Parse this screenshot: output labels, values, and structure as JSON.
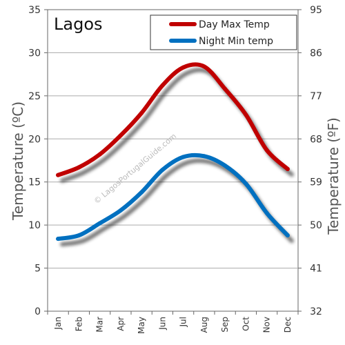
{
  "chart_data": {
    "type": "line",
    "title": "Lagos",
    "watermark": "© LagosPortugalGuide.com",
    "categories": [
      "Jan",
      "Feb",
      "Mar",
      "Apr",
      "May",
      "Jun",
      "Jul",
      "Aug",
      "Sep",
      "Oct",
      "Nov",
      "Dec"
    ],
    "series": [
      {
        "name": "Day Max Temp",
        "color": "#c00000",
        "values": [
          15.8,
          16.7,
          18.2,
          20.4,
          23.0,
          26.2,
          28.3,
          28.4,
          25.8,
          22.8,
          18.7,
          16.5
        ]
      },
      {
        "name": "Night Min temp",
        "color": "#0070c0",
        "values": [
          8.4,
          8.8,
          10.2,
          11.7,
          13.8,
          16.4,
          17.9,
          18.0,
          16.9,
          14.8,
          11.4,
          8.8
        ]
      }
    ],
    "ylabel": "Temperature  (ºC)",
    "y2label": "Temperature (ºF)",
    "ylim": [
      0,
      35
    ],
    "yticks": [
      "0",
      "5",
      "10",
      "15",
      "20",
      "25",
      "30",
      "35"
    ],
    "y2ticks": [
      "32",
      "41",
      "50",
      "59",
      "68",
      "77",
      "86",
      "95"
    ],
    "grid": true,
    "legend_position": "top-right"
  }
}
